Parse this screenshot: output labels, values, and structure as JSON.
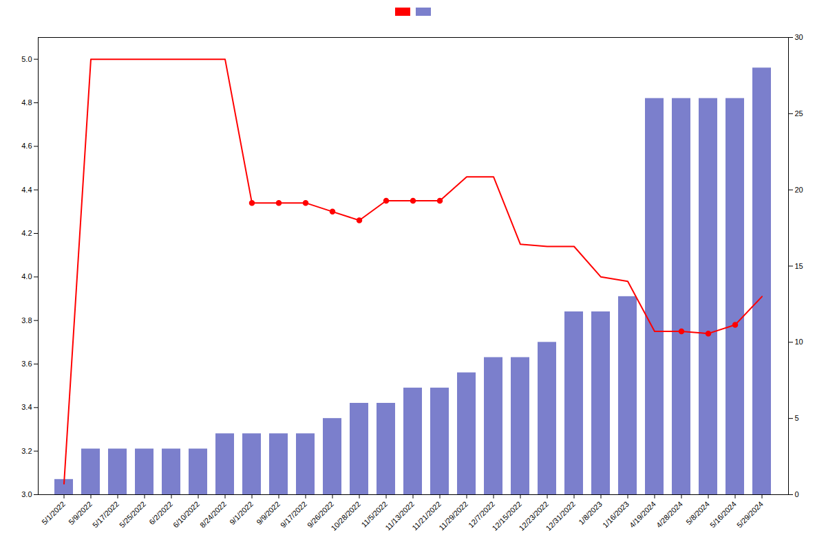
{
  "chart_data": {
    "type": "bar",
    "categories": [
      "5/1/2022",
      "5/9/2022",
      "5/17/2022",
      "5/25/2022",
      "6/2/2022",
      "6/10/2022",
      "8/24/2022",
      "9/1/2022",
      "9/9/2022",
      "9/17/2022",
      "9/26/2022",
      "10/28/2022",
      "11/5/2022",
      "11/13/2022",
      "11/21/2022",
      "11/29/2022",
      "12/7/2022",
      "12/15/2022",
      "12/23/2022",
      "12/31/2022",
      "1/8/2023",
      "1/16/2023",
      "4/19/2024",
      "4/28/2024",
      "5/8/2024",
      "5/16/2024",
      "5/29/2024"
    ],
    "series": [
      {
        "type": "line",
        "color": "#ff0000",
        "marker": "o",
        "values": [
          3.05,
          5.0,
          5.0,
          5.0,
          5.0,
          5.0,
          5.0,
          4.34,
          4.34,
          4.34,
          4.3,
          4.26,
          4.35,
          4.35,
          4.35,
          4.46,
          4.46,
          4.15,
          4.14,
          4.14,
          4.0,
          3.98,
          3.75,
          3.75,
          3.74,
          3.78,
          3.91
        ],
        "markers": [
          false,
          false,
          false,
          false,
          false,
          false,
          false,
          true,
          true,
          true,
          true,
          true,
          true,
          true,
          true,
          false,
          false,
          false,
          false,
          false,
          false,
          false,
          false,
          true,
          true,
          true,
          false
        ]
      },
      {
        "type": "bar",
        "axis": "y2",
        "color": "#7b7fcc",
        "values": [
          1,
          3,
          3,
          3,
          3,
          3,
          4,
          4,
          4,
          4,
          5,
          6,
          6,
          7,
          7,
          8,
          9,
          9,
          10,
          12,
          12,
          13,
          26,
          26,
          26,
          26,
          28
        ]
      }
    ],
    "ylim": [
      3.0,
      5.1
    ],
    "yticks": [
      {
        "value": 3.0,
        "label": "3.0"
      },
      3.2,
      3.4,
      3.6,
      3.8,
      {
        "value": 4.0,
        "label": "4.0"
      },
      4.2,
      4.4,
      4.6,
      4.8,
      {
        "value": 5.0,
        "label": "5.0"
      }
    ],
    "y2lim": [
      0,
      30
    ],
    "y2ticks": [
      0,
      5,
      10,
      15,
      20,
      25,
      30
    ],
    "grid": false,
    "legend": "top"
  }
}
